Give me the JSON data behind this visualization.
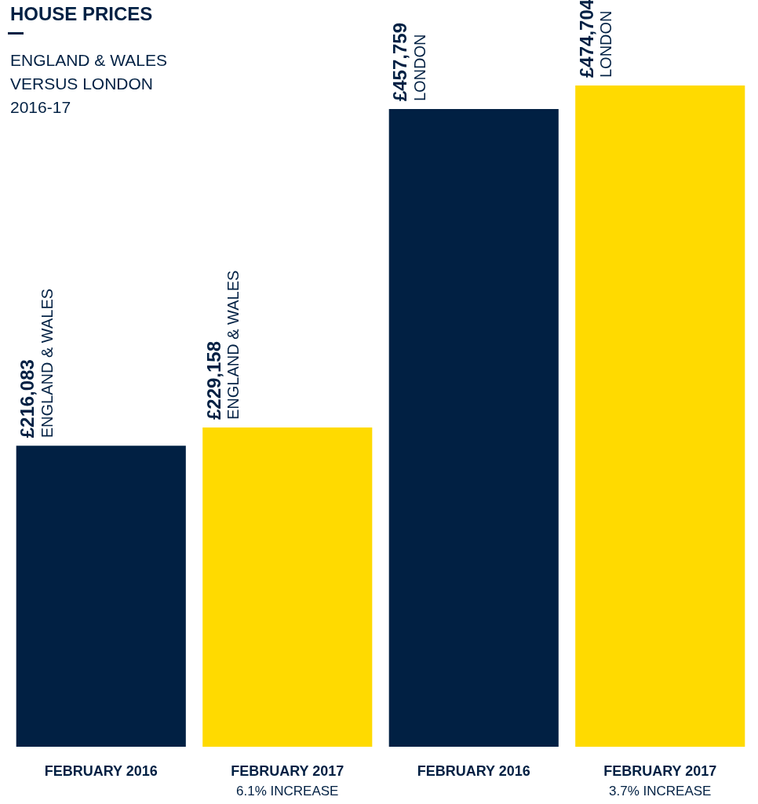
{
  "chart_data": {
    "type": "bar",
    "title": "HOUSE PRICES",
    "subtitle": "ENGLAND & WALES\nVERSUS LONDON\n2016-17",
    "categories": [
      "FEBRUARY 2016",
      "FEBRUARY 2017\n6.1% INCREASE",
      "FEBRUARY 2016",
      "FEBRUARY 2017\n3.7% INCREASE"
    ],
    "values": [
      216083,
      229158,
      457759,
      474704
    ],
    "colors": [
      "#012043",
      "#ffda00",
      "#012043",
      "#ffda00"
    ],
    "value_labels": [
      "£216,083\nENGLAND & WALES",
      "£229,158\nENGLAND & WALES",
      "£457,759\nLONDON",
      "£474,704\nLONDON"
    ]
  }
}
